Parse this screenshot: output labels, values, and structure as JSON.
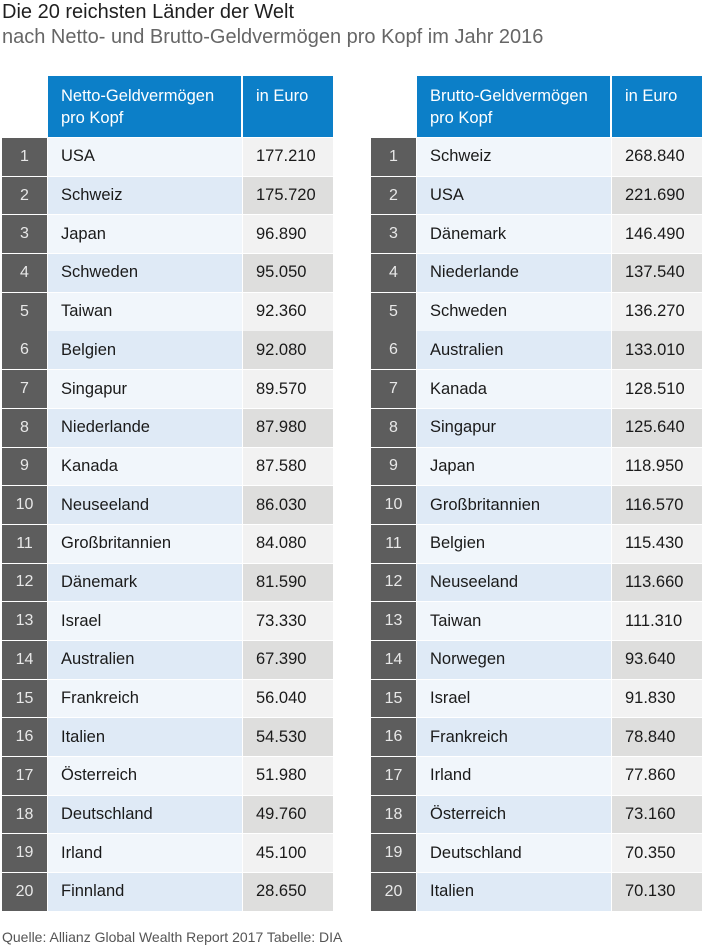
{
  "title": "Die 20 reichsten Länder der Welt",
  "subtitle": "nach Netto- und Brutto-Geldvermögen pro Kopf im Jahr 2016",
  "source": "Quelle: Allianz Global Wealth Report 2017  Tabelle: DIA",
  "colors": {
    "header": "#0c7fc8",
    "rank_cell": "#5d5d5d",
    "row_light_blue": "#dfeaf6",
    "value_gray": "#dededd"
  },
  "chart_data": [
    {
      "type": "table",
      "columns": [
        "Netto-Geldvermögen pro Kopf",
        "in Euro"
      ],
      "rows": [
        {
          "rank": "1",
          "country": "USA",
          "value": "177.210"
        },
        {
          "rank": "2",
          "country": "Schweiz",
          "value": "175.720"
        },
        {
          "rank": "3",
          "country": "Japan",
          "value": "96.890"
        },
        {
          "rank": "4",
          "country": "Schweden",
          "value": "95.050"
        },
        {
          "rank": "5",
          "country": "Taiwan",
          "value": "92.360"
        },
        {
          "rank": "6",
          "country": "Belgien",
          "value": "92.080"
        },
        {
          "rank": "7",
          "country": "Singapur",
          "value": "89.570"
        },
        {
          "rank": "8",
          "country": "Niederlande",
          "value": "87.980"
        },
        {
          "rank": "9",
          "country": "Kanada",
          "value": "87.580"
        },
        {
          "rank": "10",
          "country": "Neuseeland",
          "value": "86.030"
        },
        {
          "rank": "11",
          "country": "Großbritannien",
          "value": "84.080"
        },
        {
          "rank": "12",
          "country": "Dänemark",
          "value": "81.590"
        },
        {
          "rank": "13",
          "country": "Israel",
          "value": "73.330"
        },
        {
          "rank": "14",
          "country": "Australien",
          "value": "67.390"
        },
        {
          "rank": "15",
          "country": "Frankreich",
          "value": "56.040"
        },
        {
          "rank": "16",
          "country": "Italien",
          "value": "54.530"
        },
        {
          "rank": "17",
          "country": "Österreich",
          "value": "51.980"
        },
        {
          "rank": "18",
          "country": "Deutschland",
          "value": "49.760"
        },
        {
          "rank": "19",
          "country": "Irland",
          "value": "45.100"
        },
        {
          "rank": "20",
          "country": "Finnland",
          "value": "28.650"
        }
      ]
    },
    {
      "type": "table",
      "columns": [
        "Brutto-Geldvermögen pro Kopf",
        "in Euro"
      ],
      "rows": [
        {
          "rank": "1",
          "country": "Schweiz",
          "value": "268.840"
        },
        {
          "rank": "2",
          "country": "USA",
          "value": "221.690"
        },
        {
          "rank": "3",
          "country": "Dänemark",
          "value": "146.490"
        },
        {
          "rank": "4",
          "country": "Niederlande",
          "value": "137.540"
        },
        {
          "rank": "5",
          "country": "Schweden",
          "value": "136.270"
        },
        {
          "rank": "6",
          "country": "Australien",
          "value": "133.010"
        },
        {
          "rank": "7",
          "country": "Kanada",
          "value": "128.510"
        },
        {
          "rank": "8",
          "country": "Singapur",
          "value": "125.640"
        },
        {
          "rank": "9",
          "country": "Japan",
          "value": "118.950"
        },
        {
          "rank": "10",
          "country": "Großbritannien",
          "value": "116.570"
        },
        {
          "rank": "11",
          "country": "Belgien",
          "value": "115.430"
        },
        {
          "rank": "12",
          "country": "Neuseeland",
          "value": "113.660"
        },
        {
          "rank": "13",
          "country": "Taiwan",
          "value": "111.310"
        },
        {
          "rank": "14",
          "country": "Norwegen",
          "value": "93.640"
        },
        {
          "rank": "15",
          "country": "Israel",
          "value": "91.830"
        },
        {
          "rank": "16",
          "country": "Frankreich",
          "value": "78.840"
        },
        {
          "rank": "17",
          "country": "Irland",
          "value": "77.860"
        },
        {
          "rank": "18",
          "country": "Österreich",
          "value": "73.160"
        },
        {
          "rank": "19",
          "country": "Deutschland",
          "value": "70.350"
        },
        {
          "rank": "20",
          "country": "Italien",
          "value": "70.130"
        }
      ]
    }
  ]
}
